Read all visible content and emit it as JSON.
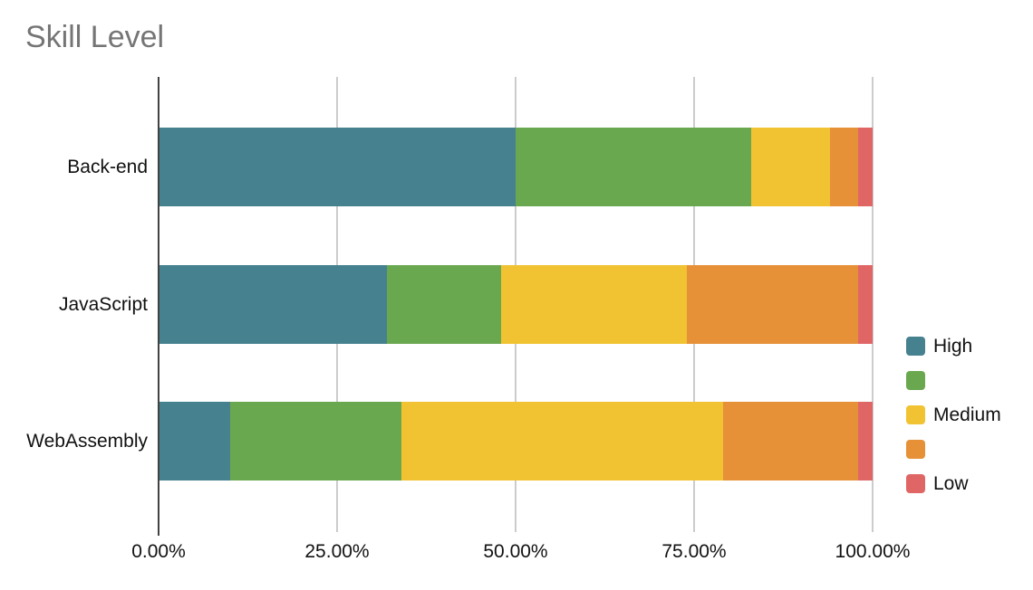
{
  "title": "Skill Level",
  "colors": {
    "title_text": "#757575",
    "axis_line": "#424242",
    "gridline": "#cccccc",
    "label_text": "#111111",
    "background": "#ffffff"
  },
  "chart_data": {
    "type": "bar",
    "stacked": true,
    "percent_stacked": true,
    "orientation": "horizontal",
    "title": "Skill Level",
    "xlabel": "",
    "ylabel": "",
    "xlim": [
      0,
      100
    ],
    "grid": true,
    "legend_position": "right",
    "categories": [
      "Back-end",
      "JavaScript",
      "WebAssembly"
    ],
    "series": [
      {
        "name": "High",
        "color": "#45818e",
        "values": [
          50,
          32,
          10
        ]
      },
      {
        "name": "",
        "color": "#6aa84f",
        "values": [
          33,
          16,
          24
        ]
      },
      {
        "name": "Medium",
        "color": "#f1c232",
        "values": [
          11,
          26,
          45
        ]
      },
      {
        "name": "",
        "color": "#e69138",
        "values": [
          4,
          24,
          19
        ]
      },
      {
        "name": "Low",
        "color": "#e06666",
        "values": [
          2,
          2,
          2
        ]
      }
    ],
    "x_tick_labels": [
      "0.00%",
      "25.00%",
      "50.00%",
      "75.00%",
      "100.00%"
    ]
  }
}
